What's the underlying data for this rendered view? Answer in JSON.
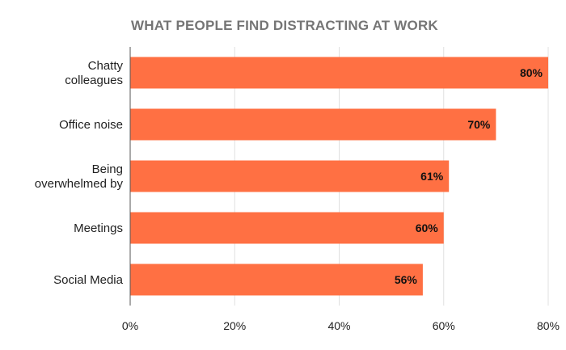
{
  "chart_data": {
    "type": "bar",
    "orientation": "horizontal",
    "title": "WHAT PEOPLE FIND DISTRACTING AT WORK",
    "categories": [
      [
        "Chatty",
        "colleagues"
      ],
      [
        "Office noise"
      ],
      [
        "Being",
        "overwhelmed by"
      ],
      [
        "Meetings"
      ],
      [
        "Social Media"
      ]
    ],
    "values": [
      80,
      70,
      61,
      60,
      56
    ],
    "data_labels": [
      "80%",
      "70%",
      "61%",
      "60%",
      "56%"
    ],
    "xlim": [
      0,
      80
    ],
    "x_ticks": [
      0,
      20,
      40,
      60,
      80
    ],
    "x_tick_labels": [
      "0%",
      "20%",
      "40%",
      "60%",
      "80%"
    ],
    "grid": true,
    "bar_color": "#ff7043",
    "grid_color": "#e0e0e0",
    "title_color": "#757575"
  }
}
